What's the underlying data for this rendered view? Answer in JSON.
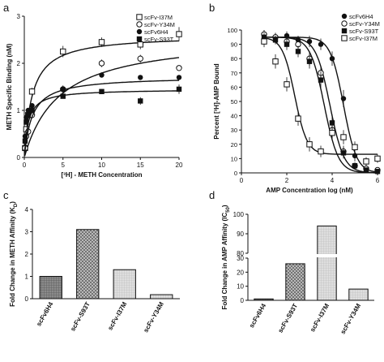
{
  "chart_data": [
    {
      "panel": "a",
      "type": "scatter",
      "xlabel": "[³H] - METH Concentration",
      "ylabel": "METH Specific Binding (nM)",
      "xlim": [
        0,
        20
      ],
      "ylim": [
        0,
        3
      ],
      "xticks": [
        0,
        5,
        10,
        15,
        20
      ],
      "yticks": [
        0,
        1,
        2,
        3
      ],
      "legend": "top-right",
      "series": [
        {
          "name": "scFv-I37M",
          "marker": "open-square",
          "x": [
            0.1,
            0.25,
            0.5,
            1,
            5,
            10,
            15,
            20
          ],
          "y": [
            0.2,
            0.6,
            0.9,
            1.4,
            2.25,
            2.45,
            2.4,
            2.62
          ],
          "err": [
            0.05,
            0.05,
            0.05,
            0.08,
            0.12,
            0.1,
            0.1,
            0.15
          ],
          "fit": {
            "bmax": 2.6,
            "kd": 1.0
          }
        },
        {
          "name": "scFv-Y34M",
          "marker": "open-circle",
          "x": [
            0.1,
            0.25,
            0.5,
            1,
            5,
            10,
            15,
            20
          ],
          "y": [
            0.2,
            0.45,
            0.55,
            0.9,
            1.45,
            2.0,
            2.1,
            1.9
          ],
          "err": [
            0.05,
            0.05,
            0.05,
            0.05,
            0.08,
            0.08,
            0.08,
            0.05
          ],
          "fit": {
            "bmax": 2.6,
            "kd": 4.5
          }
        },
        {
          "name": "scFv6H4",
          "marker": "filled-circle",
          "x": [
            0.1,
            0.25,
            0.5,
            1,
            5,
            10,
            15,
            20
          ],
          "y": [
            0.45,
            0.85,
            1.0,
            1.1,
            1.45,
            1.75,
            1.7,
            1.7
          ],
          "err": [
            0.05,
            0.05,
            0.05,
            0.05,
            0.05,
            0.05,
            0.05,
            0.05
          ],
          "fit": {
            "bmax": 1.72,
            "kd": 1.0
          }
        },
        {
          "name": "scFv-S93T",
          "marker": "filled-square",
          "x": [
            0.1,
            0.25,
            0.5,
            1,
            5,
            10,
            15,
            20
          ],
          "y": [
            0.35,
            0.75,
            0.9,
            1.0,
            1.3,
            1.4,
            1.2,
            1.45
          ],
          "err": [
            0.05,
            0.05,
            0.05,
            0.05,
            0.05,
            0.05,
            0.08,
            0.1
          ],
          "fit": {
            "bmax": 1.45,
            "kd": 0.5
          }
        }
      ]
    },
    {
      "panel": "b",
      "type": "scatter",
      "xlabel": "AMP Concentration log (nM)",
      "ylabel": "Percent [³H]-AMP Bound",
      "xlim": [
        0,
        6
      ],
      "ylim": [
        0,
        100
      ],
      "xticks": [
        0,
        2,
        4,
        6
      ],
      "yticks": [
        0,
        10,
        20,
        30,
        40,
        50,
        60,
        70,
        80,
        90,
        100
      ],
      "legend": "top-right",
      "series": [
        {
          "name": "scFv6H4",
          "marker": "filled-circle",
          "x": [
            1,
            1.5,
            2,
            2.5,
            3,
            3.5,
            4,
            4.5,
            5,
            5.5,
            6
          ],
          "y": [
            97,
            95,
            96,
            93,
            92,
            90,
            80,
            52,
            12,
            3,
            1
          ],
          "err": [
            3,
            3,
            3,
            3,
            4,
            4,
            5,
            6,
            4,
            2,
            1
          ],
          "fit": {
            "logic50": 4.5,
            "slope": 1.5,
            "top": 95,
            "bottom": 0
          }
        },
        {
          "name": "scFv-Y34M",
          "marker": "open-circle",
          "x": [
            1,
            1.5,
            2,
            2.5,
            3,
            3.5,
            4,
            4.5,
            5,
            5.5,
            6
          ],
          "y": [
            97,
            95,
            92,
            90,
            80,
            70,
            30,
            15,
            5,
            3,
            2
          ],
          "err": [
            3,
            3,
            3,
            4,
            5,
            5,
            6,
            4,
            2,
            2,
            1
          ],
          "fit": {
            "logic50": 3.9,
            "slope": 1.4,
            "top": 95,
            "bottom": 0
          }
        },
        {
          "name": "scFv-S93T",
          "marker": "filled-square",
          "x": [
            1,
            1.5,
            2,
            2.5,
            3,
            3.5,
            4,
            4.5,
            5,
            5.5,
            6
          ],
          "y": [
            95,
            93,
            90,
            85,
            78,
            65,
            35,
            14,
            5,
            2,
            1
          ],
          "err": [
            3,
            3,
            4,
            4,
            5,
            6,
            6,
            4,
            2,
            1,
            1
          ],
          "fit": {
            "logic50": 3.65,
            "slope": 1.4,
            "top": 95,
            "bottom": 0
          }
        },
        {
          "name": "scFv-I37M",
          "marker": "open-square",
          "x": [
            1,
            1.5,
            2,
            2.5,
            3,
            3.5,
            4,
            4.5,
            5,
            5.5,
            6
          ],
          "y": [
            92,
            78,
            62,
            38,
            20,
            15,
            28,
            25,
            18,
            8,
            10
          ],
          "err": [
            4,
            5,
            5,
            5,
            5,
            4,
            4,
            5,
            4,
            3,
            3
          ],
          "fit": {
            "logic50": 2.35,
            "slope": 1.6,
            "top": 95,
            "bottom": 13
          }
        }
      ]
    },
    {
      "panel": "c",
      "type": "bar",
      "ylabel": "Fold Change in METH Affinity (K",
      "ylabel_sub": "D",
      "ylabel_end": ")",
      "ylim": [
        0,
        4
      ],
      "yticks": [
        0,
        1,
        2,
        3,
        4
      ],
      "categories": [
        "scFv6H4",
        "scFv-S93T",
        "scFv-I37M",
        "scFv-Y34M"
      ],
      "values": [
        1.0,
        3.1,
        1.3,
        0.18
      ],
      "fills": [
        "dark-grid",
        "crosshatch",
        "light-grid",
        "light-grid"
      ]
    },
    {
      "panel": "d",
      "type": "bar",
      "ylabel": "Fold Change in AMP Affinity (IC",
      "ylabel_sub": "50",
      "ylabel_end": ")",
      "ylim_lower": [
        0,
        30
      ],
      "ylim_upper": [
        80,
        100
      ],
      "yticks": [
        0,
        10,
        20,
        30,
        80,
        90,
        100
      ],
      "categories": [
        "scFv6H4",
        "scFv-S93T",
        "scFv-I37M",
        "scFv-Y34M"
      ],
      "values": [
        1,
        26,
        94,
        8
      ],
      "fills": [
        "dark-grid",
        "crosshatch",
        "light-grid",
        "light-grid"
      ]
    }
  ],
  "panel_letters": [
    "a",
    "b",
    "c",
    "d"
  ]
}
